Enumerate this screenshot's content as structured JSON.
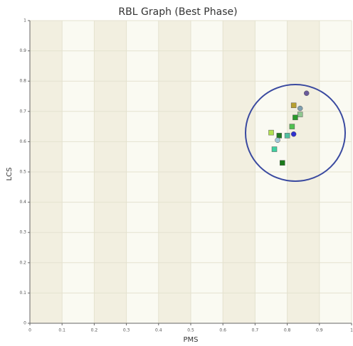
{
  "chart_data": {
    "type": "scatter",
    "title": "RBL Graph (Best Phase)",
    "x_label": "PMS",
    "y_label": "LCS",
    "x": [
      0.86,
      0.82,
      0.84,
      0.84,
      0.825,
      0.815,
      0.75,
      0.82,
      0.775,
      0.8,
      0.77,
      0.76,
      0.785
    ],
    "y": [
      0.76,
      0.72,
      0.71,
      0.69,
      0.68,
      0.65,
      0.63,
      0.625,
      0.62,
      0.62,
      0.605,
      0.575,
      0.53
    ],
    "colors": [
      "#6a5a9a",
      "#b8a030",
      "#7f9fb0",
      "#90c890",
      "#2a9a2a",
      "#50c050",
      "#b0e050",
      "#3030d0",
      "#207a20",
      "#50c0a0",
      "#a0c8d8",
      "#40d0a0",
      "#1a7a1a"
    ],
    "markers": [
      "circle",
      "square",
      "circle",
      "square",
      "square",
      "square",
      "square",
      "circle",
      "square",
      "square",
      "circle",
      "square",
      "square"
    ],
    "xlim": [
      0,
      1
    ],
    "ylim": [
      0,
      1
    ],
    "xticks": [
      0,
      0.1,
      0.2,
      0.3,
      0.4,
      0.5,
      0.6,
      0.7,
      0.8,
      0.9,
      1
    ],
    "yticks": [
      0,
      0.1,
      0.2,
      0.3,
      0.4,
      0.5,
      0.6,
      0.7,
      0.8,
      0.9,
      1
    ],
    "grid": true
  }
}
